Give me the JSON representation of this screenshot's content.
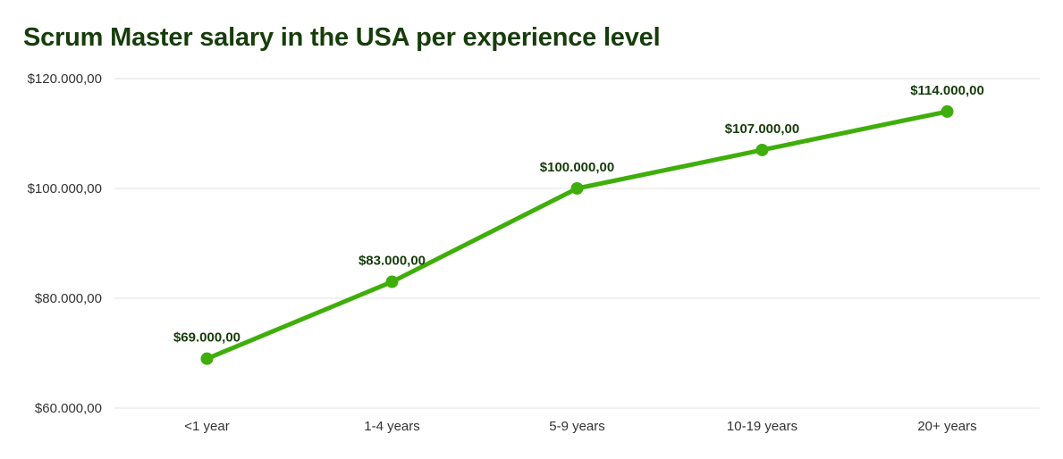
{
  "colors": {
    "title": "#173d0b",
    "line": "#3fae0a",
    "grid": "#e2e2e2",
    "tick_text": "#333333",
    "data_label": "#173d0b"
  },
  "chart_data": {
    "type": "line",
    "title": "Scrum Master salary in the USA per experience level",
    "categories": [
      "<1 year",
      "1-4 years",
      "5-9 years",
      "10-19 years",
      "20+ years"
    ],
    "series": [
      {
        "values": [
          69000,
          83000,
          100000,
          107000,
          114000
        ],
        "data_labels": [
          "$69.000,00",
          "$83.000,00",
          "$100.000,00",
          "$107.000,00",
          "$114.000,00"
        ]
      }
    ],
    "ylim": [
      60000,
      120000
    ],
    "yticks": [
      60000,
      80000,
      100000,
      120000
    ],
    "ytick_labels": [
      "$60.000,00",
      "$80.000,00",
      "$100.000,00",
      "$120.000,00"
    ],
    "xlabel": "",
    "ylabel": "",
    "grid": true,
    "legend": "none"
  }
}
